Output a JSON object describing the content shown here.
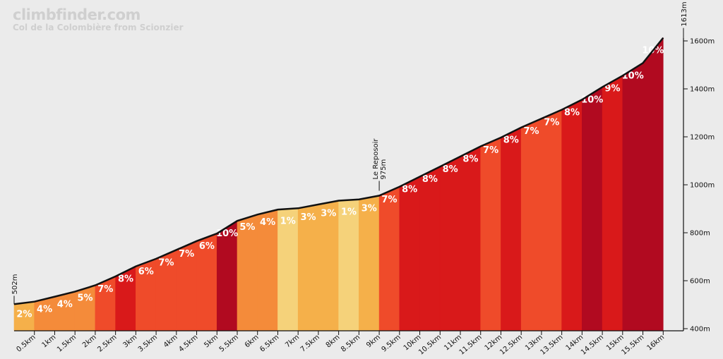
{
  "brand": "climbfinder.com",
  "subtitle": "Col de la Colombière from Scionzier",
  "chart_data": {
    "type": "area",
    "title": "Col de la Colombière from Scionzier",
    "xlim": [
      0,
      16.5
    ],
    "ylim": [
      400,
      1613
    ],
    "y_ticks": [
      400,
      600,
      800,
      1000,
      1200,
      1400,
      1600
    ],
    "y_tick_labels": [
      "400m",
      "600m",
      "800m",
      "1000m",
      "1200m",
      "1400m",
      "1600m"
    ],
    "x_ticks": [
      0.5,
      1,
      1.5,
      2,
      2.5,
      3,
      3.5,
      4,
      4.5,
      5,
      5.5,
      6,
      6.5,
      7,
      7.5,
      8,
      8.5,
      9,
      9.5,
      10,
      10.5,
      11,
      11.5,
      12,
      12.5,
      13,
      13.5,
      14,
      14.5,
      15,
      15.5,
      16
    ],
    "x_tick_labels": [
      "0.5km",
      "1km",
      "1.5km",
      "2km",
      "2.5km",
      "3km",
      "3.5km",
      "4km",
      "4.5km",
      "5km",
      "5.5km",
      "6km",
      "6.5km",
      "7km",
      "7.5km",
      "8km",
      "8.5km",
      "9km",
      "9.5km",
      "10km",
      "10.5km",
      "11km",
      "11.5km",
      "12km",
      "12.5km",
      "13km",
      "13.5km",
      "14km",
      "14.5km",
      "15km",
      "15.5km",
      "16km"
    ],
    "gradients": [
      2,
      4,
      4,
      5,
      7,
      8,
      6,
      7,
      7,
      6,
      10,
      5,
      4,
      1,
      3,
      3,
      1,
      3,
      7,
      8,
      8,
      8,
      8,
      7,
      8,
      7,
      7,
      8,
      10,
      9,
      10,
      10
    ],
    "gradient_labels": [
      "2%",
      "4%",
      "4%",
      "5%",
      "7%",
      "8%",
      "6%",
      "7%",
      "7%",
      "6%",
      "10%",
      "5%",
      "4%",
      "1%",
      "3%",
      "3%",
      "1%",
      "3%",
      "7%",
      "8%",
      "8%",
      "8%",
      "8%",
      "7%",
      "8%",
      "7%",
      "7%",
      "8%",
      "10%",
      "9%",
      "10%",
      "10%"
    ],
    "start_elevation": 502,
    "start_label": "502m",
    "end_elevation": 1613,
    "end_label": "1613m",
    "waypoint": {
      "name": "Le Reposoir",
      "km": 9,
      "elevation": 975,
      "label": "975m"
    },
    "colors": {
      "1": "#f5d27a",
      "2": "#f5b04a",
      "3": "#f5b04a",
      "4": "#f48b3a",
      "5": "#f48b3a",
      "6": "#ef4b2a",
      "7": "#ef4b2a",
      "8": "#d9191a",
      "9": "#d9191a",
      "10": "#b10a20"
    }
  }
}
